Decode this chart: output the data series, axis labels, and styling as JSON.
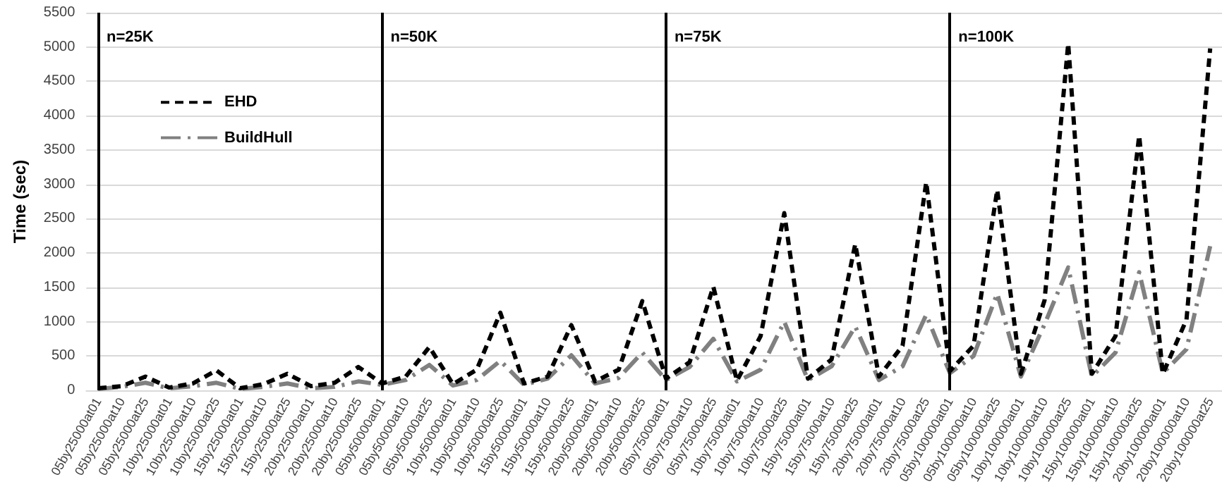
{
  "chart_data": {
    "type": "line",
    "ylabel": "Time (sec)",
    "categories": [
      "05by25000at01",
      "05by25000at10",
      "05by25000at25",
      "10by25000at01",
      "10by25000at10",
      "10by25000at25",
      "15by25000at01",
      "15by25000at10",
      "15by25000at25",
      "20by25000at01",
      "20by25000at10",
      "20by25000at25",
      "05by50000at01",
      "05by50000at10",
      "05by50000at25",
      "10by50000at01",
      "10by50000at10",
      "10by50000at25",
      "15by50000at01",
      "15by50000at10",
      "15by50000at25",
      "20by50000at01",
      "20by50000at10",
      "20by50000at25",
      "05by75000at01",
      "05by75000at10",
      "05by75000at25",
      "10by75000at01",
      "10by75000at10",
      "10by75000at25",
      "15by75000at01",
      "15by75000at10",
      "15by75000at25",
      "20by75000at01",
      "20by75000at10",
      "20by75000at25",
      "05by100000at01",
      "05by100000at10",
      "05by100000at25",
      "10by100000at01",
      "10by100000at10",
      "10by100000at25",
      "15by100000at01",
      "15by100000at10",
      "15by100000at25",
      "20by100000at01",
      "20by100000at10",
      "20by100000at25"
    ],
    "series": [
      {
        "name": "EHD",
        "color": "#000000",
        "line_style": "dashed",
        "values": [
          30,
          60,
          200,
          40,
          100,
          290,
          30,
          90,
          240,
          60,
          110,
          340,
          100,
          200,
          630,
          90,
          300,
          1130,
          100,
          200,
          950,
          130,
          300,
          1300,
          170,
          410,
          1510,
          140,
          790,
          2580,
          170,
          450,
          2130,
          200,
          650,
          3030,
          280,
          650,
          2920,
          240,
          1310,
          5050,
          240,
          790,
          3710,
          240,
          1030,
          4980
        ]
      },
      {
        "name": "BuildHull",
        "color": "#808080",
        "line_style": "dashed",
        "values": [
          20,
          50,
          110,
          30,
          60,
          110,
          20,
          50,
          100,
          30,
          50,
          130,
          80,
          150,
          370,
          70,
          150,
          430,
          80,
          170,
          510,
          100,
          180,
          550,
          150,
          340,
          750,
          130,
          300,
          1000,
          150,
          350,
          930,
          150,
          350,
          1100,
          250,
          500,
          1410,
          200,
          960,
          1790,
          200,
          550,
          1720,
          250,
          600,
          2100
        ]
      }
    ],
    "ylim": [
      0,
      5500
    ],
    "yticks": [
      0,
      500,
      1000,
      1500,
      2000,
      2500,
      3000,
      3500,
      4000,
      4500,
      5000,
      5500
    ],
    "grid": "y",
    "legend": "top left",
    "marker": "none",
    "ref_lines": [
      {
        "axis": "x",
        "value": "05by25000at01",
        "label": "n=25K",
        "color": "#000000"
      },
      {
        "axis": "x",
        "value": "05by50000at01",
        "label": "n=50K",
        "color": "#000000"
      },
      {
        "axis": "x",
        "value": "05by75000at01",
        "label": "n=75K",
        "color": "#000000"
      },
      {
        "axis": "x",
        "value": "05by100000at01",
        "label": "n=100K",
        "color": "#000000"
      }
    ]
  }
}
